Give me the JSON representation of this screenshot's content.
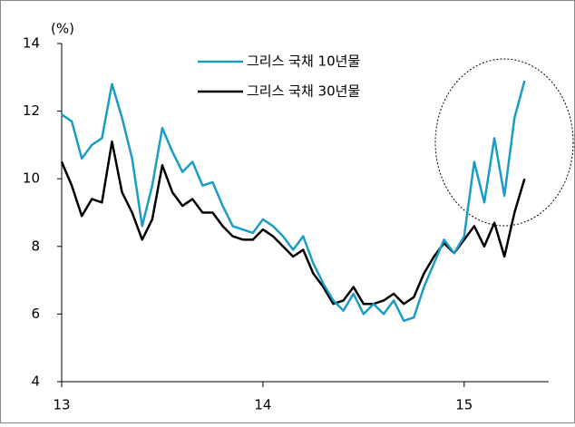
{
  "chart_data": {
    "type": "line",
    "y_label": "(%)",
    "x": [
      13.0,
      13.05,
      13.1,
      13.15,
      13.2,
      13.25,
      13.3,
      13.35,
      13.4,
      13.45,
      13.5,
      13.55,
      13.6,
      13.65,
      13.7,
      13.75,
      13.8,
      13.85,
      13.9,
      13.95,
      14.0,
      14.05,
      14.1,
      14.15,
      14.2,
      14.25,
      14.3,
      14.35,
      14.4,
      14.45,
      14.5,
      14.55,
      14.6,
      14.65,
      14.7,
      14.75,
      14.8,
      14.85,
      14.9,
      14.95,
      15.0,
      15.05,
      15.1,
      15.15,
      15.2,
      15.25,
      15.3
    ],
    "series": [
      {
        "name": "그리스 국채 10년물",
        "color": "#1a9cc4",
        "values": [
          11.9,
          11.7,
          10.6,
          11.0,
          11.2,
          12.8,
          11.8,
          10.6,
          8.6,
          9.8,
          11.5,
          10.8,
          10.2,
          10.5,
          9.8,
          9.9,
          9.2,
          8.6,
          8.5,
          8.4,
          8.8,
          8.6,
          8.3,
          7.9,
          8.3,
          7.5,
          6.9,
          6.4,
          6.1,
          6.6,
          6.0,
          6.3,
          6.0,
          6.4,
          5.8,
          5.9,
          6.8,
          7.5,
          8.2,
          7.8,
          8.3,
          10.5,
          9.3,
          11.2,
          9.5,
          11.8,
          12.9
        ]
      },
      {
        "name": "그리스 국채 30년물",
        "color": "#000000",
        "values": [
          10.5,
          9.8,
          8.9,
          9.4,
          9.3,
          11.1,
          9.6,
          9.0,
          8.2,
          8.8,
          10.4,
          9.6,
          9.2,
          9.4,
          9.0,
          9.0,
          8.6,
          8.3,
          8.2,
          8.2,
          8.5,
          8.3,
          8.0,
          7.7,
          7.9,
          7.2,
          6.8,
          6.3,
          6.4,
          6.8,
          6.3,
          6.3,
          6.4,
          6.6,
          6.3,
          6.5,
          7.2,
          7.7,
          8.1,
          7.8,
          8.2,
          8.6,
          8.0,
          8.7,
          7.7,
          9.0,
          10.0
        ]
      }
    ],
    "xlim": [
      13,
      15.42
    ],
    "xticks": [
      13,
      14,
      15
    ],
    "ylim": [
      4,
      14
    ],
    "yticks": [
      4,
      6,
      8,
      10,
      12,
      14
    ],
    "grid": false,
    "legend": "top"
  }
}
